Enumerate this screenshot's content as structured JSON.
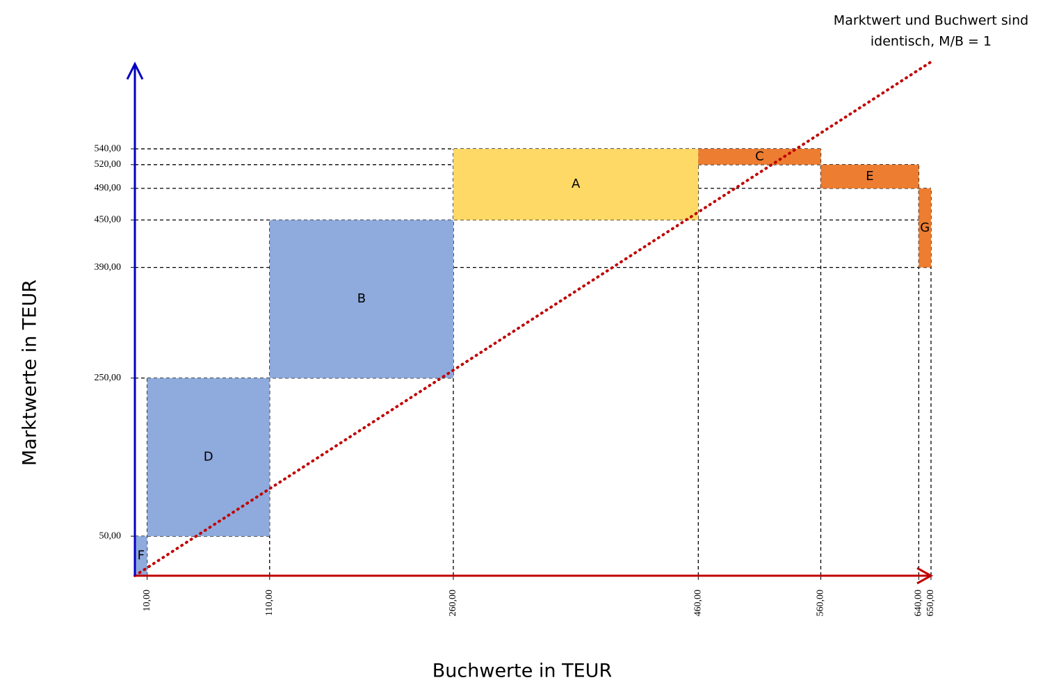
{
  "chart_data": {
    "type": "mekko",
    "annotation": [
      "Marktwert und Buchwert sind",
      "identisch, M/B = 1"
    ],
    "x_label": "Buchwerte in TEUR",
    "y_label": "Marktwerte in TEUR",
    "xlim": [
      0,
      650
    ],
    "ylim": [
      0,
      650
    ],
    "xticks": [
      {
        "value": 10,
        "label": "10,00"
      },
      {
        "value": 110,
        "label": "110,00"
      },
      {
        "value": 260,
        "label": "260,00"
      },
      {
        "value": 460,
        "label": "460,00"
      },
      {
        "value": 560,
        "label": "560,00"
      },
      {
        "value": 640,
        "label": "640,00"
      },
      {
        "value": 650,
        "label": "650,00"
      }
    ],
    "yticks": [
      {
        "value": 50,
        "label": "50,00"
      },
      {
        "value": 250,
        "label": "250,00"
      },
      {
        "value": 390,
        "label": "390,00"
      },
      {
        "value": 450,
        "label": "450,00"
      },
      {
        "value": 490,
        "label": "490,00"
      },
      {
        "value": 520,
        "label": "520,00"
      },
      {
        "value": 540,
        "label": "540,00"
      }
    ],
    "x_axis_color": "#c00000",
    "y_axis_color": "#0000c0",
    "series": [
      {
        "name": "F",
        "color": "#8faadc",
        "x": [
          0,
          10
        ],
        "y": [
          0,
          50
        ]
      },
      {
        "name": "D",
        "color": "#8faadc",
        "x": [
          10,
          110
        ],
        "y": [
          50,
          250
        ]
      },
      {
        "name": "B",
        "color": "#8faadc",
        "x": [
          110,
          260
        ],
        "y": [
          250,
          450
        ]
      },
      {
        "name": "A",
        "color": "#ffd966",
        "x": [
          260,
          460
        ],
        "y": [
          450,
          540
        ]
      },
      {
        "name": "C",
        "color": "#ed7d31",
        "x": [
          460,
          560
        ],
        "y": [
          520,
          540
        ]
      },
      {
        "name": "E",
        "color": "#ed7d31",
        "x": [
          560,
          640
        ],
        "y": [
          490,
          520
        ]
      },
      {
        "name": "G",
        "color": "#ed7d31",
        "x": [
          640,
          650
        ],
        "y": [
          390,
          490
        ]
      }
    ],
    "reference_line": {
      "x": [
        0,
        650
      ],
      "y": [
        0,
        650
      ],
      "color": "#c00000"
    }
  }
}
